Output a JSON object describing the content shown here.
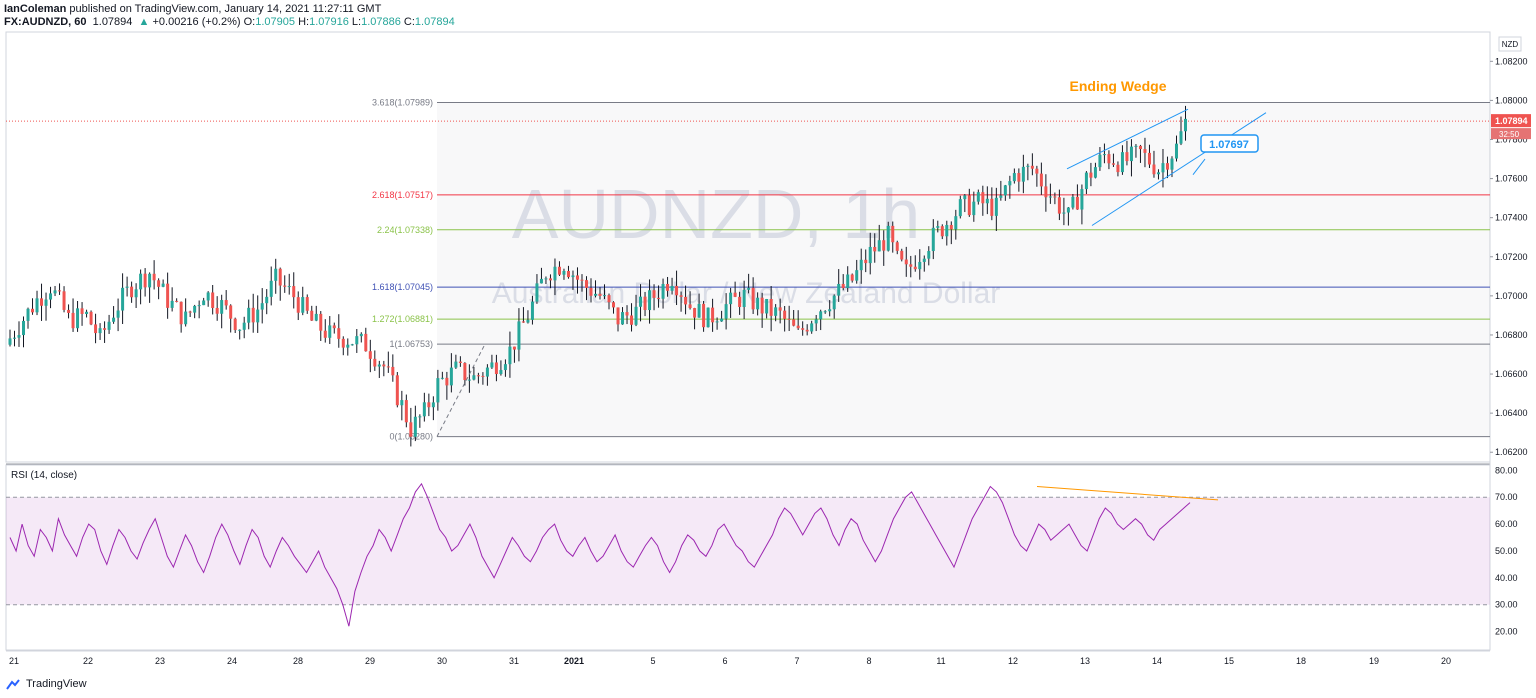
{
  "header": {
    "author": "IanColeman",
    "published": "published on TradingView.com, January 14, 2021 11:27:11 GMT",
    "symbol": "FX:AUDNZD, 60",
    "last": "1.07894",
    "change": "+0.00216 (+0.2%)",
    "o_label": "O:",
    "o": "1.07905",
    "h_label": "H:",
    "h": "1.07916",
    "l_label": "L:",
    "l": "1.07886",
    "c_label": "C:",
    "c": "1.07894"
  },
  "footer": {
    "brand": "TradingView"
  },
  "colors": {
    "up": "#26a69a",
    "down": "#ef5350",
    "wick": "#131722",
    "rsi": "#9c27b0",
    "wedge": "#2196f3",
    "annotation": "#ff9800"
  },
  "chart_data": [
    {
      "type": "candlestick",
      "title": "",
      "watermark": "AUDNZD, 1h",
      "watermark_sub": "Australian Dollar / New Zealand Dollar",
      "currency": "NZD",
      "ylim": [
        1.0615,
        1.0835
      ],
      "y_ticks": [
        "1.08200",
        "1.08000",
        "1.07800",
        "1.07600",
        "1.07400",
        "1.07200",
        "1.07000",
        "1.06800",
        "1.06600",
        "1.06400",
        "1.06200"
      ],
      "x_ticks": [
        "21",
        "22",
        "23",
        "24",
        "28",
        "29",
        "30",
        "31",
        "2021",
        "5",
        "6",
        "7",
        "8",
        "11",
        "12",
        "13",
        "14",
        "15",
        "18",
        "19",
        "20"
      ],
      "last_price": "1.07894",
      "countdown": "32:50",
      "fib_levels": [
        {
          "label": "3.618(1.07989)",
          "value": 1.07989,
          "color": "#787b86"
        },
        {
          "label": "2.618(1.07517)",
          "value": 1.07517,
          "color": "#f23645"
        },
        {
          "label": "2.24(1.07338)",
          "value": 1.07338,
          "color": "#8bc34a"
        },
        {
          "label": "1.618(1.07045)",
          "value": 1.07045,
          "color": "#3f51b5"
        },
        {
          "label": "1.272(1.06881)",
          "value": 1.06881,
          "color": "#8bc34a"
        },
        {
          "label": "1(1.06753)",
          "value": 1.06753,
          "color": "#787b86"
        },
        {
          "label": "0(1.06280)",
          "value": 1.0628,
          "color": "#787b86"
        }
      ],
      "annotations": {
        "pattern": "Ending Wedge",
        "price_callout": "1.07697"
      },
      "close_path": [
        [
          0,
          1.0675
        ],
        [
          3,
          1.0685
        ],
        [
          7,
          1.0698
        ],
        [
          10,
          1.0705
        ],
        [
          14,
          1.0688
        ],
        [
          18,
          1.069
        ],
        [
          21,
          1.0678
        ],
        [
          24,
          1.0692
        ],
        [
          28,
          1.0705
        ],
        [
          32,
          1.0712
        ],
        [
          36,
          1.0698
        ],
        [
          40,
          1.0688
        ],
        [
          44,
          1.0702
        ],
        [
          48,
          1.0695
        ],
        [
          52,
          1.0685
        ],
        [
          56,
          1.0693
        ],
        [
          60,
          1.0708
        ],
        [
          64,
          1.07
        ],
        [
          68,
          1.0687
        ],
        [
          72,
          1.068
        ],
        [
          76,
          1.0678
        ],
        [
          80,
          1.0675
        ],
        [
          84,
          1.0664
        ],
        [
          88,
          1.0644
        ],
        [
          90,
          1.0632
        ],
        [
          93,
          1.064
        ],
        [
          96,
          1.0655
        ],
        [
          100,
          1.0662
        ],
        [
          104,
          1.0658
        ],
        [
          108,
          1.0664
        ],
        [
          112,
          1.0672
        ],
        [
          116,
          1.069
        ],
        [
          120,
          1.0712
        ],
        [
          124,
          1.0717
        ],
        [
          128,
          1.0706
        ],
        [
          132,
          1.07
        ],
        [
          136,
          1.0688
        ],
        [
          140,
          1.0692
        ],
        [
          144,
          1.07
        ],
        [
          148,
          1.071
        ],
        [
          152,
          1.0695
        ],
        [
          156,
          1.0688
        ],
        [
          160,
          1.0695
        ],
        [
          164,
          1.07
        ],
        [
          168,
          1.0694
        ],
        [
          172,
          1.069
        ],
        [
          176,
          1.068
        ],
        [
          180,
          1.0692
        ],
        [
          184,
          1.07
        ],
        [
          188,
          1.0708
        ],
        [
          192,
          1.0722
        ],
        [
          196,
          1.073
        ],
        [
          198,
          1.0718
        ],
        [
          200,
          1.0712
        ],
        [
          204,
          1.0725
        ],
        [
          208,
          1.0735
        ],
        [
          212,
          1.0745
        ],
        [
          216,
          1.0748
        ],
        [
          220,
          1.0745
        ],
        [
          224,
          1.0762
        ],
        [
          228,
          1.0765
        ],
        [
          232,
          1.0752
        ],
        [
          236,
          1.074
        ],
        [
          240,
          1.076
        ],
        [
          244,
          1.0772
        ],
        [
          248,
          1.0768
        ],
        [
          252,
          1.0773
        ],
        [
          256,
          1.0765
        ],
        [
          260,
          1.0776
        ],
        [
          262,
          1.0789
        ]
      ],
      "total_bars": 262
    },
    {
      "type": "line",
      "title": "RSI (14, close)",
      "ylim": [
        15,
        82
      ],
      "y_ticks": [
        "80.00",
        "70.00",
        "60.00",
        "50.00",
        "40.00",
        "30.00",
        "20.00"
      ],
      "band": [
        30,
        70
      ],
      "values": [
        55,
        50,
        60,
        52,
        48,
        58,
        55,
        50,
        62,
        56,
        52,
        48,
        55,
        60,
        58,
        50,
        45,
        52,
        58,
        55,
        50,
        47,
        53,
        58,
        62,
        55,
        48,
        44,
        50,
        56,
        52,
        46,
        42,
        48,
        55,
        60,
        56,
        50,
        45,
        52,
        58,
        55,
        48,
        44,
        50,
        55,
        52,
        48,
        45,
        42,
        46,
        50,
        44,
        40,
        36,
        30,
        22,
        35,
        42,
        48,
        52,
        58,
        55,
        50,
        56,
        62,
        66,
        72,
        75,
        70,
        64,
        58,
        55,
        50,
        52,
        56,
        60,
        55,
        48,
        44,
        40,
        45,
        50,
        55,
        52,
        48,
        46,
        50,
        55,
        58,
        60,
        54,
        50,
        48,
        52,
        55,
        50,
        46,
        48,
        52,
        56,
        50,
        46,
        44,
        48,
        52,
        55,
        52,
        46,
        42,
        46,
        52,
        56,
        54,
        50,
        48,
        52,
        58,
        60,
        56,
        52,
        50,
        46,
        44,
        48,
        52,
        56,
        62,
        66,
        64,
        60,
        56,
        60,
        64,
        66,
        62,
        56,
        52,
        58,
        62,
        60,
        54,
        50,
        46,
        50,
        56,
        62,
        66,
        70,
        72,
        68,
        64,
        60,
        56,
        52,
        48,
        44,
        50,
        56,
        62,
        66,
        70,
        74,
        72,
        68,
        62,
        56,
        52,
        50,
        55,
        60,
        58,
        54,
        56,
        58,
        60,
        56,
        52,
        50,
        56,
        62,
        66,
        64,
        60,
        58,
        60,
        62,
        60,
        56,
        54,
        58,
        60,
        62,
        64,
        66,
        68
      ]
    }
  ]
}
